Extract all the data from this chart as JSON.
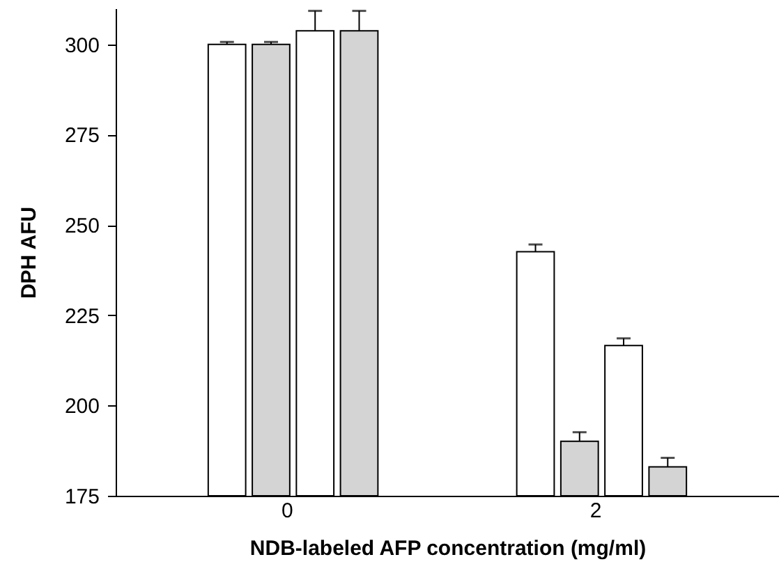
{
  "chart_data": {
    "type": "bar",
    "xlabel": "NDB-labeled AFP concentration (mg/ml)",
    "ylabel": "DPH AFU",
    "categories": [
      "0",
      "2"
    ],
    "series": [
      {
        "color": "#ffffff",
        "values": [
          300,
          242.6
        ],
        "errors": [
          0.7,
          2
        ]
      },
      {
        "color": "#d4d4d4",
        "values": [
          300,
          190.1
        ],
        "errors": [
          0.7,
          2.5
        ]
      },
      {
        "color": "#ffffff",
        "values": [
          303.8,
          216.6
        ],
        "errors": [
          5.5,
          2
        ]
      },
      {
        "color": "#d4d4d4",
        "values": [
          303.8,
          183
        ],
        "errors": [
          5.5,
          2.5
        ]
      }
    ],
    "ylim": [
      175,
      310
    ],
    "yticks": [
      175,
      200,
      225,
      250,
      275,
      300
    ],
    "grid": false,
    "legend": false
  }
}
